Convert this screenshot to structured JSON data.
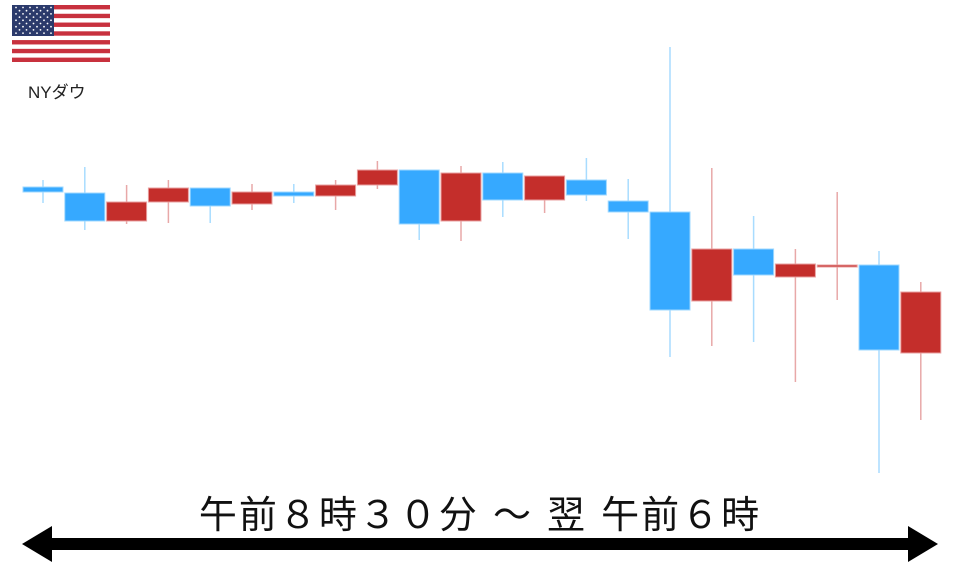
{
  "header": {
    "label": "NYダウ",
    "flag_icon": "us-flag-icon"
  },
  "caption": "午前８時３０分 ～ 翌 午前６時",
  "colors": {
    "down": "#36a9ff",
    "up": "#c42e2b",
    "down_wick": "#a8dcff",
    "up_wick": "#e8a8a8"
  },
  "chart_data": {
    "type": "candlestick",
    "title": "",
    "xlabel": "",
    "ylabel": "",
    "grid": false,
    "candles": [
      {
        "open": 313,
        "high": 320,
        "low": 297,
        "close": 308,
        "dir": "down"
      },
      {
        "open": 307,
        "high": 333,
        "low": 270,
        "close": 279,
        "dir": "down"
      },
      {
        "open": 279,
        "high": 315,
        "low": 276,
        "close": 298,
        "dir": "up"
      },
      {
        "open": 298,
        "high": 320,
        "low": 277,
        "close": 312,
        "dir": "up"
      },
      {
        "open": 312,
        "high": 312,
        "low": 277,
        "close": 294,
        "dir": "down"
      },
      {
        "open": 296,
        "high": 316,
        "low": 290,
        "close": 308,
        "dir": "up"
      },
      {
        "open": 308,
        "high": 316,
        "low": 297,
        "close": 304,
        "dir": "down"
      },
      {
        "open": 304,
        "high": 320,
        "low": 290,
        "close": 315,
        "dir": "up"
      },
      {
        "open": 315,
        "high": 339,
        "low": 311,
        "close": 330,
        "dir": "up"
      },
      {
        "open": 330,
        "high": 330,
        "low": 260,
        "close": 276,
        "dir": "down"
      },
      {
        "open": 279,
        "high": 334,
        "low": 259,
        "close": 327,
        "dir": "up"
      },
      {
        "open": 327,
        "high": 338,
        "low": 283,
        "close": 300,
        "dir": "down"
      },
      {
        "open": 300,
        "high": 324,
        "low": 287,
        "close": 324,
        "dir": "up"
      },
      {
        "open": 320,
        "high": 342,
        "low": 299,
        "close": 305,
        "dir": "down"
      },
      {
        "open": 299,
        "high": 321,
        "low": 261,
        "close": 288,
        "dir": "down"
      },
      {
        "open": 288,
        "high": 453,
        "low": 143,
        "close": 190,
        "dir": "down"
      },
      {
        "open": 199,
        "high": 332,
        "low": 154,
        "close": 251,
        "dir": "up"
      },
      {
        "open": 251,
        "high": 284,
        "low": 158,
        "close": 225,
        "dir": "down"
      },
      {
        "open": 223,
        "high": 251,
        "low": 118,
        "close": 236,
        "dir": "up"
      },
      {
        "open": 233,
        "high": 308,
        "low": 200,
        "close": 235,
        "dir": "up"
      },
      {
        "open": 235,
        "high": 249,
        "low": 27,
        "close": 150,
        "dir": "down"
      },
      {
        "open": 147,
        "high": 218,
        "low": 80,
        "close": 208,
        "dir": "up"
      }
    ]
  }
}
